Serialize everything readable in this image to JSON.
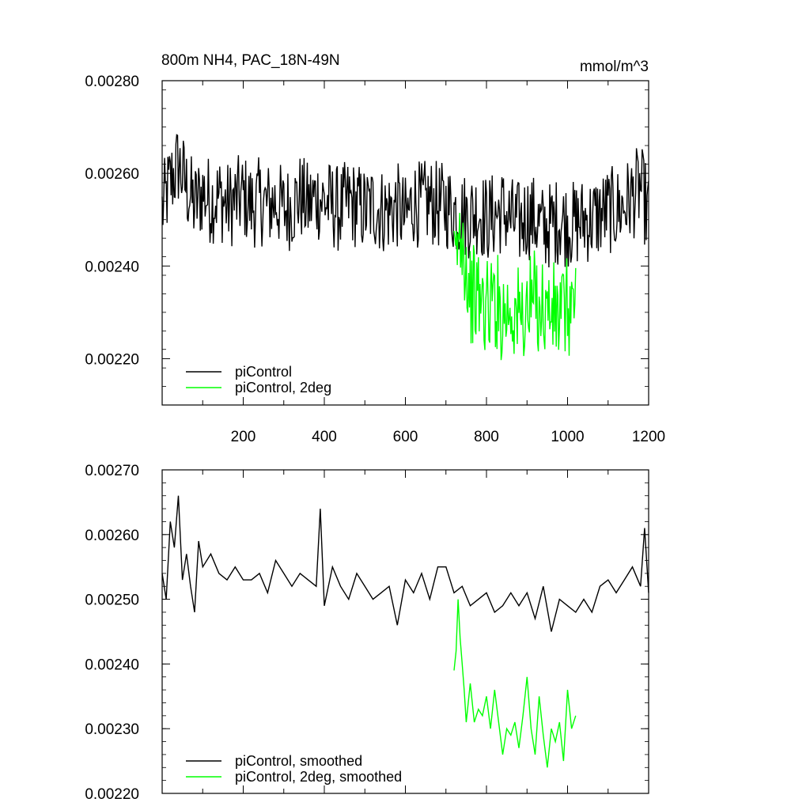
{
  "chart_data": [
    {
      "type": "line",
      "title_left": "800m NH4, PAC_18N-49N",
      "title_right": "mmol/m^3",
      "xlim": [
        0,
        1200
      ],
      "ylim": [
        0.0021,
        0.0028
      ],
      "x_ticks": [
        200,
        400,
        600,
        800,
        1000,
        1200
      ],
      "x_tick_labels": [
        "200",
        "400",
        "600",
        "800",
        "1000",
        "1200"
      ],
      "y_ticks": [
        0.0022,
        0.0024,
        0.0026,
        0.0028
      ],
      "y_tick_labels": [
        "0.00220",
        "0.00240",
        "0.00260",
        "0.00280"
      ],
      "legend_position": "bottom-left",
      "series": [
        {
          "name": "piControl",
          "color": "#000000",
          "x_range": [
            0,
            1200
          ],
          "x": [
            0,
            20,
            40,
            60,
            80,
            100,
            120,
            140,
            160,
            180,
            200,
            220,
            240,
            260,
            280,
            300,
            320,
            340,
            360,
            380,
            400,
            420,
            440,
            460,
            480,
            500,
            520,
            540,
            560,
            580,
            600,
            620,
            640,
            660,
            680,
            700,
            720,
            740,
            760,
            780,
            800,
            820,
            840,
            860,
            880,
            900,
            920,
            940,
            960,
            980,
            1000,
            1020,
            1040,
            1060,
            1080,
            1100,
            1120,
            1140,
            1160,
            1180,
            1200
          ],
          "values": [
            0.00252,
            0.00258,
            0.00262,
            0.00257,
            0.00253,
            0.00256,
            0.00254,
            0.00255,
            0.00253,
            0.00254,
            0.00255,
            0.00253,
            0.00254,
            0.00253,
            0.00254,
            0.00252,
            0.00253,
            0.00255,
            0.00253,
            0.00255,
            0.00254,
            0.00253,
            0.00252,
            0.00254,
            0.00253,
            0.00252,
            0.00253,
            0.00252,
            0.00252,
            0.00253,
            0.0025,
            0.00254,
            0.00253,
            0.00254,
            0.00253,
            0.00253,
            0.00252,
            0.00251,
            0.00251,
            0.00252,
            0.0025,
            0.00251,
            0.00252,
            0.0025,
            0.00249,
            0.00251,
            0.0025,
            0.00248,
            0.00249,
            0.0025,
            0.00249,
            0.00249,
            0.0025,
            0.0025,
            0.00251,
            0.00252,
            0.00252,
            0.00253,
            0.00255,
            0.00257,
            0.00251
          ]
        },
        {
          "name": "piControl, 2deg",
          "color": "#00ff00",
          "x_range": [
            720,
            1020
          ],
          "x": [
            720,
            730,
            740,
            750,
            760,
            780,
            800,
            820,
            840,
            860,
            880,
            900,
            920,
            940,
            960,
            980,
            1000,
            1020
          ],
          "values": [
            0.00238,
            0.00245,
            0.00248,
            0.0024,
            0.00234,
            0.00233,
            0.00231,
            0.00233,
            0.0023,
            0.00231,
            0.00229,
            0.0023,
            0.00233,
            0.00231,
            0.0023,
            0.00229,
            0.00231,
            0.00232
          ]
        }
      ]
    },
    {
      "type": "line",
      "xlim": [
        0,
        1200
      ],
      "ylim": [
        0.0022,
        0.0027
      ],
      "y_ticks": [
        0.0022,
        0.0023,
        0.0024,
        0.0025,
        0.0026,
        0.0027
      ],
      "y_tick_labels": [
        "0.00220",
        "0.00230",
        "0.00240",
        "0.00250",
        "0.00260",
        "0.00270"
      ],
      "legend_position": "bottom-left",
      "series": [
        {
          "name": "piControl, smoothed",
          "color": "#000000",
          "x": [
            0,
            10,
            20,
            30,
            40,
            50,
            60,
            70,
            80,
            90,
            100,
            120,
            140,
            160,
            180,
            200,
            220,
            240,
            260,
            280,
            300,
            320,
            340,
            360,
            380,
            390,
            400,
            420,
            440,
            460,
            480,
            500,
            520,
            540,
            560,
            580,
            600,
            620,
            640,
            660,
            680,
            700,
            720,
            740,
            760,
            780,
            800,
            820,
            840,
            860,
            880,
            900,
            920,
            940,
            960,
            980,
            1000,
            1020,
            1040,
            1060,
            1080,
            1100,
            1120,
            1140,
            1160,
            1180,
            1190,
            1200
          ],
          "values": [
            0.00254,
            0.0025,
            0.00262,
            0.00258,
            0.00266,
            0.00253,
            0.00257,
            0.00252,
            0.00248,
            0.00259,
            0.00255,
            0.00257,
            0.00254,
            0.00253,
            0.00255,
            0.00253,
            0.00253,
            0.00254,
            0.00251,
            0.00256,
            0.00254,
            0.00252,
            0.00254,
            0.00253,
            0.00252,
            0.00264,
            0.00249,
            0.00255,
            0.00252,
            0.0025,
            0.00254,
            0.00252,
            0.0025,
            0.00251,
            0.00252,
            0.00246,
            0.00253,
            0.00251,
            0.00254,
            0.0025,
            0.00255,
            0.00255,
            0.00251,
            0.00252,
            0.00249,
            0.0025,
            0.00251,
            0.00248,
            0.00249,
            0.00251,
            0.00249,
            0.00251,
            0.00247,
            0.00252,
            0.00245,
            0.0025,
            0.00249,
            0.00248,
            0.0025,
            0.00248,
            0.00252,
            0.00253,
            0.00251,
            0.00253,
            0.00255,
            0.00252,
            0.00261,
            0.00251
          ]
        },
        {
          "name": "piControl, 2deg, smoothed",
          "color": "#00ff00",
          "x": [
            720,
            725,
            730,
            735,
            740,
            745,
            750,
            760,
            770,
            780,
            790,
            800,
            810,
            820,
            830,
            840,
            850,
            860,
            870,
            880,
            890,
            900,
            910,
            920,
            930,
            940,
            950,
            960,
            970,
            980,
            990,
            1000,
            1010,
            1020
          ],
          "values": [
            0.00239,
            0.00242,
            0.0025,
            0.00244,
            0.0024,
            0.00236,
            0.00231,
            0.00237,
            0.00231,
            0.00233,
            0.00232,
            0.00235,
            0.0023,
            0.00236,
            0.00231,
            0.00226,
            0.0023,
            0.00229,
            0.00231,
            0.00227,
            0.00232,
            0.00238,
            0.0023,
            0.00226,
            0.00235,
            0.00229,
            0.00224,
            0.0023,
            0.00228,
            0.00231,
            0.00225,
            0.00236,
            0.0023,
            0.00232
          ]
        }
      ]
    }
  ]
}
